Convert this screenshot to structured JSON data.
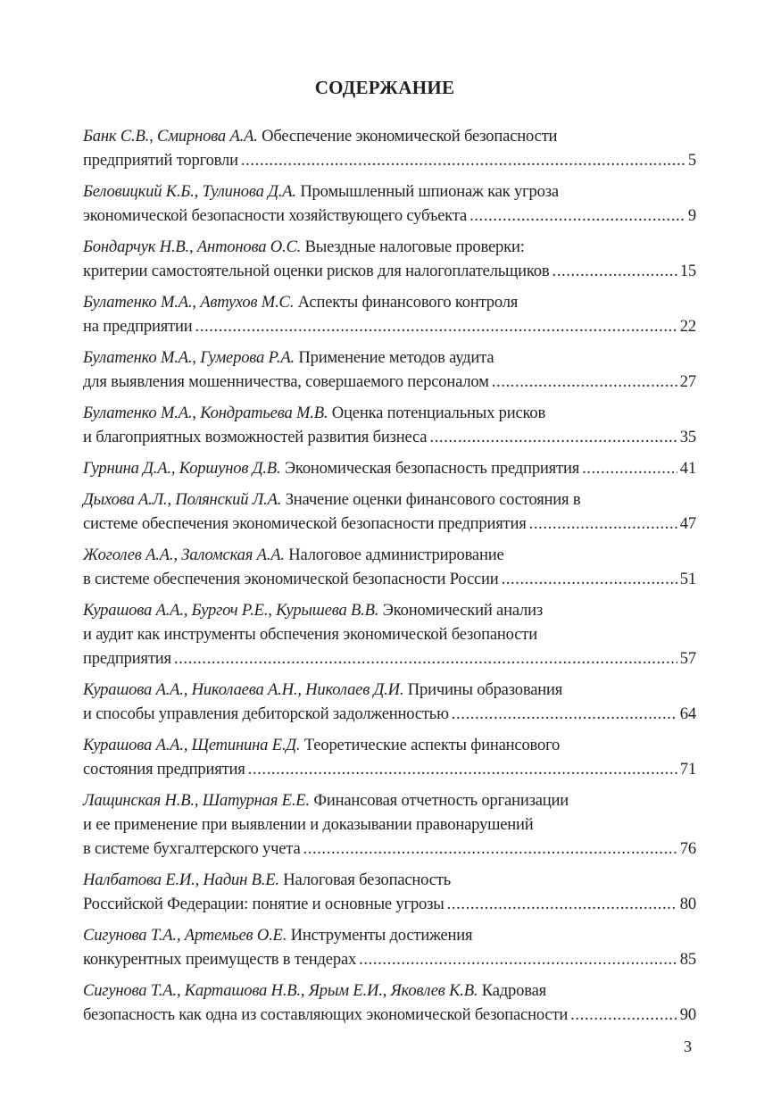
{
  "title": "СОДЕРЖАНИЕ",
  "entries": [
    {
      "authors": "Банк С.В., Смирнова А.А.",
      "lines": [
        "Обеспечение экономической безопасности",
        "предприятий торговли"
      ],
      "page": "5"
    },
    {
      "authors": "Беловицкий К.Б., Тулинова Д.А.",
      "lines": [
        "Промышленный шпионаж как угроза",
        "экономической безопасности хозяйствующего субъекта"
      ],
      "page": "9"
    },
    {
      "authors": "Бондарчук Н.В., Антонова О.С.",
      "lines": [
        "Выездные налоговые проверки:",
        "критерии самостоятельной оценки рисков для налогоплательщиков"
      ],
      "page": "15"
    },
    {
      "authors": "Булатенко М.А., Автухов М.С.",
      "lines": [
        "Аспекты финансового контроля",
        "на предприятии"
      ],
      "page": "22"
    },
    {
      "authors": "Булатенко М.А., Гумерова Р.А.",
      "lines": [
        "Применение методов аудита",
        "для выявления мошенничества, совершаемого персоналом"
      ],
      "page": "27"
    },
    {
      "authors": "Булатенко М.А., Кондратьева М.В.",
      "lines": [
        "Оценка потенциальных рисков",
        "и благоприятных возможностей развития бизнеса"
      ],
      "page": "35"
    },
    {
      "authors": "Гурнина Д.А., Коршунов Д.В.",
      "lines": [
        "Экономическая безопасность предприятия"
      ],
      "page": "41"
    },
    {
      "authors": "Дыхова А.Л., Полянский Л.А.",
      "lines": [
        "Значение оценки финансового состояния в",
        "системе обеспечения экономической безопасности предприятия"
      ],
      "page": "47"
    },
    {
      "authors": "Жоголев А.А., Заломская А.А.",
      "lines": [
        "Налоговое администрирование",
        "в системе обеспечения экономической безопасности России"
      ],
      "page": "51"
    },
    {
      "authors": "Курашова А.А., Бургоч Р.Е., Курышева В.В.",
      "lines": [
        "Экономический анализ",
        "и аудит как инструменты обспечения экономической безопаности",
        "предприятия"
      ],
      "page": "57"
    },
    {
      "authors": "Курашова А.А., Николаева А.Н., Николаев Д.И.",
      "lines": [
        "Причины образования",
        "и способы управления дебиторской задолженностью"
      ],
      "page": "64"
    },
    {
      "authors": "Курашова А.А., Щетинина Е.Д.",
      "lines": [
        "Теоретические аспекты финансового",
        "состояния предприятия"
      ],
      "page": "71"
    },
    {
      "authors": "Лащинская Н.В., Шатурная Е.Е.",
      "lines": [
        "Финансовая отчетность организации",
        "и ее применение при выявлении и доказывании правонарушений",
        "в системе бухгалтерского учета"
      ],
      "page": "76"
    },
    {
      "authors": "Налбатова Е.И., Надин В.Е.",
      "lines": [
        "Налоговая безопасность",
        "Российской Федерации: понятие и основные угрозы"
      ],
      "page": "80"
    },
    {
      "authors": "Сигунова Т.А., Артемьев О.Е.",
      "lines": [
        "Инструменты достижения",
        "конкурентных преимуществ в тендерах"
      ],
      "page": "85"
    },
    {
      "authors": "Сигунова Т.А., Карташова Н.В., Ярым Е.И., Яковлев К.В.",
      "lines": [
        "Кадровая",
        "безопасность как одна из составляющих экономической безопасности"
      ],
      "page": "90"
    }
  ],
  "page_number": "3"
}
